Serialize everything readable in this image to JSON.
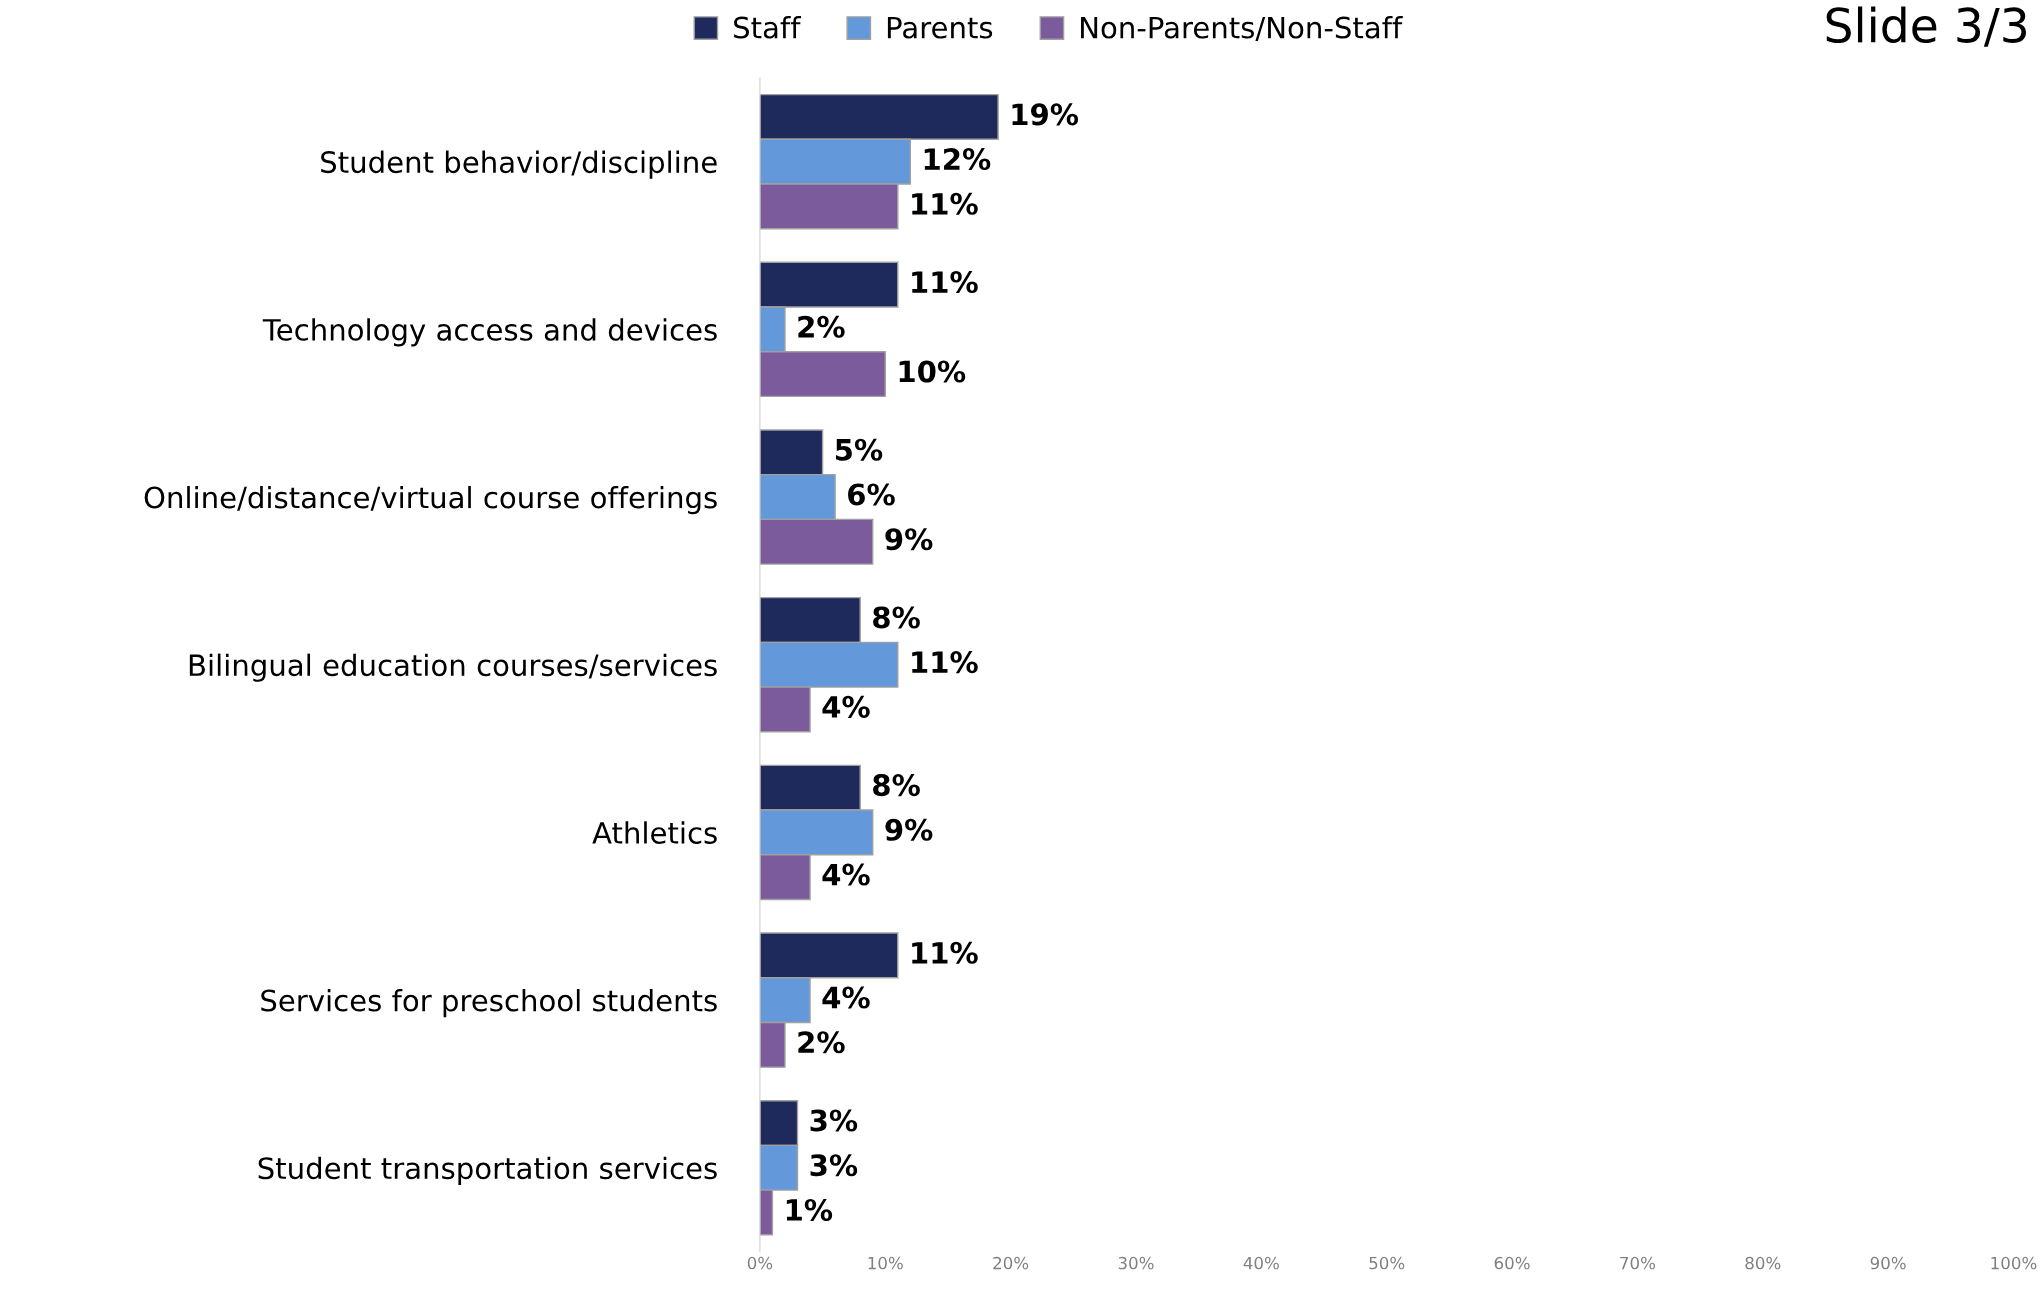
{
  "chart_data": {
    "type": "bar",
    "orientation": "horizontal",
    "annotations": [
      "Slide 3/3"
    ],
    "categories": [
      "Student behavior/discipline",
      "Technology access and devices",
      "Online/distance/virtual course offerings",
      "Bilingual education courses/services",
      "Athletics",
      "Services for preschool students",
      "Student transportation services"
    ],
    "series": [
      {
        "name": "Staff",
        "color": "#1f2a5c",
        "values": [
          19,
          11,
          5,
          8,
          8,
          11,
          3
        ]
      },
      {
        "name": "Parents",
        "color": "#6399da",
        "values": [
          12,
          2,
          6,
          11,
          9,
          4,
          3
        ]
      },
      {
        "name": "Non-Parents/Non-Staff",
        "color": "#7b5b9c",
        "values": [
          11,
          10,
          9,
          4,
          4,
          2,
          1
        ]
      }
    ],
    "xlim": [
      0,
      100
    ],
    "xticks": [
      {
        "value": 0,
        "label": "0%"
      },
      {
        "value": 10,
        "label": "10%"
      },
      {
        "value": 20,
        "label": "20%"
      },
      {
        "value": 30,
        "label": "30%"
      },
      {
        "value": 40,
        "label": "40%"
      },
      {
        "value": 50,
        "label": "50%"
      },
      {
        "value": 60,
        "label": "60%"
      },
      {
        "value": 70,
        "label": "70%"
      },
      {
        "value": 80,
        "label": "80%"
      },
      {
        "value": 90,
        "label": "90%"
      },
      {
        "value": 100,
        "label": "100%"
      }
    ],
    "value_labels": [
      [
        "19%",
        "11%",
        "5%",
        "8%",
        "8%",
        "11%",
        "3%"
      ],
      [
        "12%",
        "2%",
        "6%",
        "11%",
        "9%",
        "4%",
        "3%"
      ],
      [
        "11%",
        "10%",
        "9%",
        "4%",
        "4%",
        "2%",
        "1%"
      ]
    ],
    "legend": "top",
    "grid": false
  }
}
